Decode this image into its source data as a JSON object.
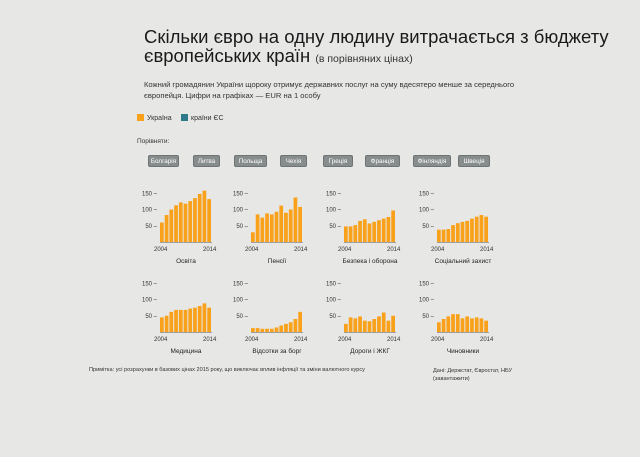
{
  "title": "Скільки євро на одну людину витрачається з бюджету європейських країн",
  "title_sub": "(в порівняних цінах)",
  "intro": "Кожний громадянин України щороку отримує державних послуг на суму вдесятеро менше за середнього європейця. Цифри на графіках — EUR на 1 особу",
  "legend": [
    {
      "label": "Україна",
      "color": "#f9a11b"
    },
    {
      "label": "країни ЄС",
      "color": "#2e7a8a"
    }
  ],
  "compare_label": "Порівняти:",
  "buttons": [
    "Болгарія",
    "Литва",
    "Польща",
    "Чехія",
    "Греція",
    "Франція",
    "Фінляндія",
    "Швеція"
  ],
  "note": "Примітка: усі розрахунки в базових цінах 2015 року, що виключає вплив інфляції та зміни валютного курсу",
  "source": "Дані: Держстат, Євростат, НБУ (завантажити)",
  "chart_data": [
    {
      "type": "bar",
      "title": "Освіта",
      "categories": [
        "2004",
        "2005",
        "2006",
        "2007",
        "2008",
        "2009",
        "2010",
        "2011",
        "2012",
        "2013",
        "2014"
      ],
      "x_tick_labels": [
        "2004",
        "2014"
      ],
      "y_ticks": [
        50,
        100,
        150
      ],
      "ylim": [
        0,
        160
      ],
      "values": [
        60,
        83,
        100,
        113,
        122,
        118,
        126,
        135,
        148,
        158,
        132
      ],
      "color": "#f9a11b"
    },
    {
      "type": "bar",
      "title": "Пенсії",
      "categories": [
        "2004",
        "2005",
        "2006",
        "2007",
        "2008",
        "2009",
        "2010",
        "2011",
        "2012",
        "2013",
        "2014"
      ],
      "x_tick_labels": [
        "2004",
        "2014"
      ],
      "y_ticks": [
        50,
        100,
        150
      ],
      "ylim": [
        0,
        160
      ],
      "values": [
        30,
        85,
        75,
        88,
        85,
        93,
        112,
        90,
        100,
        137,
        108
      ],
      "color": "#f9a11b"
    },
    {
      "type": "bar",
      "title": "Безпека і оборона",
      "categories": [
        "2004",
        "2005",
        "2006",
        "2007",
        "2008",
        "2009",
        "2010",
        "2011",
        "2012",
        "2013",
        "2014"
      ],
      "x_tick_labels": [
        "2004",
        "2014"
      ],
      "y_ticks": [
        50,
        100,
        150
      ],
      "ylim": [
        0,
        160
      ],
      "values": [
        48,
        48,
        52,
        65,
        70,
        57,
        62,
        67,
        72,
        77,
        97
      ],
      "color": "#f9a11b"
    },
    {
      "type": "bar",
      "title": "Соціальний захист",
      "categories": [
        "2004",
        "2005",
        "2006",
        "2007",
        "2008",
        "2009",
        "2010",
        "2011",
        "2012",
        "2013",
        "2014"
      ],
      "x_tick_labels": [
        "2004",
        "2014"
      ],
      "y_ticks": [
        50,
        100,
        150
      ],
      "ylim": [
        0,
        160
      ],
      "values": [
        38,
        38,
        40,
        52,
        58,
        62,
        65,
        72,
        78,
        83,
        78
      ],
      "color": "#f9a11b"
    },
    {
      "type": "bar",
      "title": "Медицина",
      "categories": [
        "2004",
        "2005",
        "2006",
        "2007",
        "2008",
        "2009",
        "2010",
        "2011",
        "2012",
        "2013",
        "2014"
      ],
      "x_tick_labels": [
        "2004",
        "2014"
      ],
      "y_ticks": [
        50,
        100,
        150
      ],
      "ylim": [
        0,
        160
      ],
      "values": [
        45,
        50,
        62,
        68,
        68,
        68,
        72,
        75,
        80,
        88,
        75
      ],
      "color": "#f9a11b"
    },
    {
      "type": "bar",
      "title": "Відсотки за борг",
      "categories": [
        "2004",
        "2005",
        "2006",
        "2007",
        "2008",
        "2009",
        "2010",
        "2011",
        "2012",
        "2013",
        "2014"
      ],
      "x_tick_labels": [
        "2004",
        "2014"
      ],
      "y_ticks": [
        50,
        100,
        150
      ],
      "ylim": [
        0,
        160
      ],
      "values": [
        12,
        12,
        10,
        10,
        10,
        14,
        20,
        25,
        30,
        40,
        62
      ],
      "color": "#f9a11b"
    },
    {
      "type": "bar",
      "title": "Дороги і ЖКГ",
      "categories": [
        "2004",
        "2005",
        "2006",
        "2007",
        "2008",
        "2009",
        "2010",
        "2011",
        "2012",
        "2013",
        "2014"
      ],
      "x_tick_labels": [
        "2004",
        "2014"
      ],
      "y_ticks": [
        50,
        100,
        150
      ],
      "ylim": [
        0,
        160
      ],
      "values": [
        25,
        45,
        42,
        48,
        35,
        33,
        40,
        48,
        60,
        35,
        50
      ],
      "color": "#f9a11b"
    },
    {
      "type": "bar",
      "title": "Чиновники",
      "categories": [
        "2004",
        "2005",
        "2006",
        "2007",
        "2008",
        "2009",
        "2010",
        "2011",
        "2012",
        "2013",
        "2014"
      ],
      "x_tick_labels": [
        "2004",
        "2014"
      ],
      "y_ticks": [
        50,
        100,
        150
      ],
      "ylim": [
        0,
        160
      ],
      "values": [
        30,
        40,
        48,
        55,
        55,
        42,
        48,
        42,
        45,
        42,
        35
      ],
      "color": "#f9a11b"
    }
  ]
}
